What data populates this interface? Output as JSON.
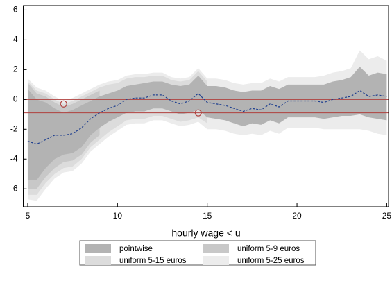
{
  "chart_data": {
    "type": "band",
    "xlabel": "hourly wage < u",
    "xlim": [
      4.75,
      25.1
    ],
    "ylim": [
      -7.2,
      6.3
    ],
    "xticks": [
      5,
      10,
      15,
      20,
      25
    ],
    "yticks": [
      -6,
      -4,
      -2,
      0,
      2,
      4,
      6
    ],
    "bands": [
      {
        "name": "uniform 5-25 euros",
        "color": "#ececec",
        "x": [
          5,
          5.5,
          6,
          6.5,
          7,
          7.5,
          8,
          8.5,
          9,
          9.5,
          10,
          10.5,
          11,
          11.5,
          12,
          12.5,
          13,
          13.5,
          14,
          14.5,
          15,
          15.5,
          16,
          16.5,
          17,
          17.5,
          18,
          18.5,
          19,
          19.5,
          20,
          20.5,
          21,
          21.5,
          22,
          22.5,
          23,
          23.5,
          24,
          24.5,
          25
        ],
        "upper": [
          1.4,
          0.8,
          0.6,
          0.2,
          -0.1,
          0.1,
          0.4,
          0.7,
          1.0,
          1.2,
          1.3,
          1.6,
          1.7,
          1.7,
          1.8,
          1.8,
          1.5,
          1.4,
          1.5,
          2.1,
          1.4,
          1.4,
          1.3,
          1.1,
          1.0,
          1.1,
          1.1,
          1.4,
          1.2,
          1.5,
          1.5,
          1.5,
          1.5,
          1.6,
          1.8,
          1.9,
          2.1,
          3.3,
          2.7,
          2.9,
          2.6
        ],
        "lower": [
          -6.7,
          -6.8,
          -6.0,
          -5.3,
          -4.9,
          -4.8,
          -4.3,
          -3.5,
          -3.0,
          -2.5,
          -2.1,
          -1.7,
          -1.6,
          -1.6,
          -1.4,
          -1.4,
          -1.6,
          -1.8,
          -1.7,
          -1.5,
          -2.0,
          -2.0,
          -2.1,
          -2.3,
          -2.4,
          -2.3,
          -2.4,
          -2.1,
          -2.3,
          -1.9,
          -1.9,
          -1.9,
          -1.9,
          -2.0,
          -2.0,
          -2.0,
          -2.0,
          -2.0,
          -2.1,
          -2.3,
          -2.4
        ]
      },
      {
        "name": "uniform 5-15 euros",
        "color": "#dcdcdc",
        "x": [
          5,
          5.5,
          6,
          6.5,
          7,
          7.5,
          8,
          8.5,
          9,
          9.5,
          10,
          10.5,
          11,
          11.5,
          12,
          12.5,
          13,
          13.5,
          14,
          14.5,
          15
        ],
        "upper": [
          1.2,
          0.6,
          0.4,
          0,
          -0.3,
          -0.1,
          0.2,
          0.5,
          0.8,
          1.0,
          1.1,
          1.4,
          1.5,
          1.5,
          1.6,
          1.6,
          1.3,
          1.2,
          1.3,
          1.9,
          1.2
        ],
        "lower": [
          -6.4,
          -6.4,
          -5.6,
          -5.0,
          -4.6,
          -4.5,
          -4.0,
          -3.2,
          -2.7,
          -2.2,
          -1.8,
          -1.4,
          -1.3,
          -1.3,
          -1.1,
          -1.1,
          -1.3,
          -1.5,
          -1.4,
          -1.2,
          -1.6
        ]
      },
      {
        "name": "uniform 5-9 euros",
        "color": "#c8c8c8",
        "x": [
          5,
          5.5,
          6,
          6.5,
          7,
          7.5,
          8,
          8.5,
          9
        ],
        "upper": [
          1.1,
          0.4,
          0.2,
          -0.2,
          -0.5,
          -0.3,
          0,
          0.3,
          0.6
        ],
        "lower": [
          -6.0,
          -6.0,
          -5.2,
          -4.6,
          -4.2,
          -4.1,
          -3.7,
          -2.9,
          -2.4
        ]
      },
      {
        "name": "pointwise",
        "color": "#b3b3b3",
        "x": [
          5,
          5.5,
          6,
          6.5,
          7,
          7.5,
          8,
          8.5,
          9,
          9.5,
          10,
          10.5,
          11,
          11.5,
          12,
          12.5,
          13,
          13.5,
          14,
          14.5,
          15,
          15.5,
          16,
          16.5,
          17,
          17.5,
          18,
          18.5,
          19,
          19.5,
          20,
          20.5,
          21,
          21.5,
          22,
          22.5,
          23,
          23.5,
          24,
          24.5,
          25
        ],
        "upper": [
          0.7,
          0,
          -0.2,
          -0.6,
          -0.9,
          -0.7,
          -0.4,
          -0.1,
          0.2,
          0.4,
          0.6,
          0.9,
          1.0,
          1.1,
          1.2,
          1.2,
          1.0,
          0.9,
          1.0,
          1.6,
          0.9,
          0.9,
          0.8,
          0.6,
          0.5,
          0.6,
          0.6,
          0.9,
          0.7,
          1.0,
          1.0,
          1.0,
          1.0,
          1.0,
          1.2,
          1.3,
          1.5,
          2.2,
          1.6,
          1.8,
          1.7
        ],
        "lower": [
          -5.4,
          -5.4,
          -4.6,
          -4.0,
          -3.7,
          -3.6,
          -3.2,
          -2.4,
          -1.9,
          -1.5,
          -1.2,
          -0.9,
          -0.8,
          -0.8,
          -0.6,
          -0.6,
          -0.8,
          -1.0,
          -0.9,
          -0.7,
          -1.2,
          -1.3,
          -1.4,
          -1.6,
          -1.8,
          -1.6,
          -1.7,
          -1.4,
          -1.6,
          -1.2,
          -1.2,
          -1.2,
          -1.2,
          -1.3,
          -1.2,
          -1.1,
          -1.1,
          -1.0,
          -1.2,
          -1.3,
          -1.4
        ]
      }
    ],
    "estimate": {
      "color": "#1f3f8f",
      "x": [
        5,
        5.5,
        6,
        6.5,
        7,
        7.5,
        8,
        8.5,
        9,
        9.5,
        10,
        10.5,
        11,
        11.5,
        12,
        12.5,
        13,
        13.5,
        14,
        14.5,
        15,
        15.5,
        16,
        16.5,
        17,
        17.5,
        18,
        18.5,
        19,
        19.5,
        20,
        20.5,
        21,
        21.5,
        22,
        22.5,
        23,
        23.5,
        24,
        24.5,
        25
      ],
      "values": [
        -2.8,
        -3.0,
        -2.7,
        -2.4,
        -2.4,
        -2.3,
        -1.9,
        -1.3,
        -0.9,
        -0.6,
        -0.4,
        0.0,
        0.1,
        0.1,
        0.3,
        0.3,
        -0.1,
        -0.3,
        -0.1,
        0.4,
        -0.2,
        -0.3,
        -0.4,
        -0.6,
        -0.8,
        -0.6,
        -0.7,
        -0.3,
        -0.5,
        -0.1,
        -0.1,
        -0.1,
        -0.1,
        -0.2,
        0.0,
        0.1,
        0.2,
        0.6,
        0.2,
        0.3,
        0.2
      ]
    },
    "hlines": {
      "color": "#b0413e",
      "values": [
        0,
        -0.9
      ]
    },
    "points": {
      "color": "#b0413e",
      "x": [
        7,
        14.5
      ],
      "y": [
        -0.3,
        -0.9
      ]
    }
  }
}
